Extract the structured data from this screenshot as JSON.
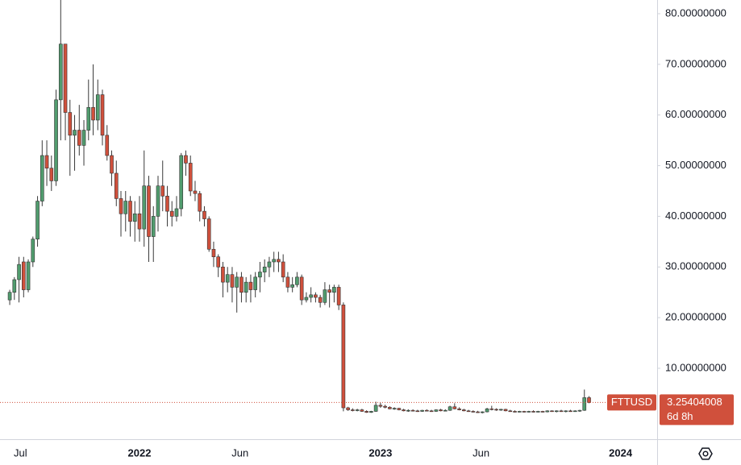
{
  "chart_data": {
    "type": "candlestick",
    "symbol": "FTTUSD",
    "last_price": 3.25404008,
    "countdown": "6d 8h",
    "up_color": "#519c6e",
    "down_color": "#d0503c",
    "grid": false,
    "ylim": [
      -4,
      82.7
    ],
    "xlim": [
      -2.1,
      139.7
    ],
    "yticks": [
      {
        "value": 10,
        "label": "10.00000000"
      },
      {
        "value": 20,
        "label": "20.00000000"
      },
      {
        "value": 30,
        "label": "30.00000000"
      },
      {
        "value": 40,
        "label": "40.00000000"
      },
      {
        "value": 50,
        "label": "50.00000000"
      },
      {
        "value": 60,
        "label": "60.00000000"
      },
      {
        "value": 70,
        "label": "70.00000000"
      },
      {
        "value": 80,
        "label": "80.00000000"
      }
    ],
    "xticks": [
      {
        "value": 2.3,
        "label": "Jul"
      },
      {
        "value": 28,
        "label": "2022"
      },
      {
        "value": 49.7,
        "label": "Jun"
      },
      {
        "value": 80,
        "label": "2023"
      },
      {
        "value": 101.7,
        "label": "Jun"
      },
      {
        "value": 131.8,
        "label": "2024"
      }
    ],
    "candles": [
      [
        23.5,
        25.5,
        22.5,
        25
      ],
      [
        25,
        28,
        23.5,
        27.5
      ],
      [
        27.5,
        32,
        23,
        30.5
      ],
      [
        31,
        32,
        24,
        25.5
      ],
      [
        25.5,
        31.5,
        25,
        31
      ],
      [
        31,
        36,
        30,
        35.5
      ],
      [
        35.5,
        44,
        34,
        43
      ],
      [
        43,
        55,
        42,
        52
      ],
      [
        52,
        55,
        46,
        49.5
      ],
      [
        49.5,
        52,
        45,
        47
      ],
      [
        47,
        65,
        46,
        63
      ],
      [
        63,
        83,
        55,
        74
      ],
      [
        74,
        74,
        55,
        60.5
      ],
      [
        60.5,
        63,
        48,
        56
      ],
      [
        56,
        60,
        49,
        57
      ],
      [
        57,
        62,
        52,
        54
      ],
      [
        54,
        59,
        50,
        57
      ],
      [
        57,
        67,
        55,
        61.5
      ],
      [
        61.5,
        70,
        56,
        59
      ],
      [
        59,
        67,
        57,
        64
      ],
      [
        64,
        65,
        54,
        56
      ],
      [
        56,
        58,
        51,
        52
      ],
      [
        52,
        53,
        46,
        48.5
      ],
      [
        48.5,
        51,
        42,
        43.5
      ],
      [
        43.5,
        45,
        36,
        40.5
      ],
      [
        40.5,
        45,
        37,
        43
      ],
      [
        43,
        44,
        36,
        39
      ],
      [
        39,
        43,
        35,
        40.5
      ],
      [
        40.5,
        44,
        35,
        37.5
      ],
      [
        37.5,
        53,
        34,
        46
      ],
      [
        46,
        48,
        31,
        36
      ],
      [
        36,
        42,
        31,
        40
      ],
      [
        40,
        48,
        37,
        46
      ],
      [
        46,
        51,
        41,
        44
      ],
      [
        44,
        46,
        38,
        41
      ],
      [
        41,
        43,
        38,
        40
      ],
      [
        40,
        44,
        39,
        41.5
      ],
      [
        41.5,
        52.5,
        40,
        52
      ],
      [
        52,
        53,
        48,
        50.5
      ],
      [
        50.5,
        52,
        44,
        45
      ],
      [
        45,
        47,
        43,
        44.5
      ],
      [
        44.5,
        45,
        39,
        41
      ],
      [
        41,
        42,
        38,
        39.5
      ],
      [
        39.5,
        40,
        33,
        33.5
      ],
      [
        33.5,
        35,
        30,
        32
      ],
      [
        32,
        32.5,
        28,
        30
      ],
      [
        30,
        31,
        24,
        27
      ],
      [
        27,
        30,
        25,
        28.5
      ],
      [
        28.5,
        30,
        23,
        26
      ],
      [
        26,
        29,
        21,
        28
      ],
      [
        28,
        29,
        23,
        25
      ],
      [
        25,
        28,
        23,
        27
      ],
      [
        27,
        28.5,
        23,
        25.5
      ],
      [
        25.5,
        29,
        24,
        28
      ],
      [
        28,
        31,
        25,
        29
      ],
      [
        29,
        31.5,
        27,
        30
      ],
      [
        30,
        32,
        28,
        31
      ],
      [
        31,
        33,
        29,
        31.5
      ],
      [
        31.5,
        33,
        29,
        31
      ],
      [
        31,
        32.5,
        27,
        28
      ],
      [
        28,
        29,
        25,
        26
      ],
      [
        26,
        28,
        25,
        26.5
      ],
      [
        26.5,
        29,
        26,
        28
      ],
      [
        28,
        28.5,
        22.5,
        23.5
      ],
      [
        23.5,
        25,
        23,
        24
      ],
      [
        24,
        26,
        23,
        24.5
      ],
      [
        24.5,
        25,
        23,
        24
      ],
      [
        24,
        24.5,
        22,
        23
      ],
      [
        23,
        27,
        22.5,
        25.5
      ],
      [
        25.5,
        26.5,
        22,
        25
      ],
      [
        25,
        26.5,
        23,
        26
      ],
      [
        26,
        26.5,
        21.5,
        22.5
      ],
      [
        22.5,
        23,
        1.5,
        2.2
      ],
      [
        2.2,
        2.4,
        1.6,
        1.8
      ],
      [
        1.8,
        2.1,
        1.5,
        1.7
      ],
      [
        1.7,
        2.0,
        1.5,
        1.8
      ],
      [
        1.8,
        2.0,
        1.4,
        1.5
      ],
      [
        1.5,
        1.7,
        1.2,
        1.3
      ],
      [
        1.3,
        1.6,
        1.2,
        1.5
      ],
      [
        1.5,
        3.4,
        1.4,
        2.7
      ],
      [
        2.7,
        3.2,
        2.2,
        2.5
      ],
      [
        2.5,
        2.8,
        2.1,
        2.3
      ],
      [
        2.3,
        2.5,
        1.9,
        2.0
      ],
      [
        2.0,
        2.3,
        1.8,
        2.1
      ],
      [
        2.1,
        2.2,
        1.7,
        1.8
      ],
      [
        1.8,
        2.0,
        1.5,
        1.6
      ],
      [
        1.6,
        1.9,
        1.4,
        1.7
      ],
      [
        1.7,
        1.9,
        1.5,
        1.6
      ],
      [
        1.6,
        1.8,
        1.4,
        1.5
      ],
      [
        1.5,
        1.8,
        1.4,
        1.7
      ],
      [
        1.7,
        1.9,
        1.5,
        1.6
      ],
      [
        1.6,
        1.8,
        1.4,
        1.5
      ],
      [
        1.5,
        1.9,
        1.4,
        1.8
      ],
      [
        1.8,
        2.0,
        1.5,
        1.6
      ],
      [
        1.6,
        1.9,
        1.5,
        1.7
      ],
      [
        1.7,
        2.6,
        1.6,
        2.4
      ],
      [
        2.4,
        3.1,
        1.9,
        2.0
      ],
      [
        2.0,
        2.3,
        1.7,
        1.8
      ],
      [
        1.8,
        2.0,
        1.5,
        1.6
      ],
      [
        1.6,
        1.8,
        1.4,
        1.5
      ],
      [
        1.5,
        1.7,
        1.3,
        1.4
      ],
      [
        1.4,
        1.6,
        1.2,
        1.3
      ],
      [
        1.3,
        1.5,
        1.1,
        1.4
      ],
      [
        1.4,
        2.2,
        1.3,
        2.0
      ],
      [
        2.0,
        2.6,
        1.7,
        1.9
      ],
      [
        1.9,
        2.1,
        1.6,
        1.8
      ],
      [
        1.8,
        2.0,
        1.6,
        1.9
      ],
      [
        1.9,
        2.0,
        1.5,
        1.6
      ],
      [
        1.6,
        1.8,
        1.4,
        1.5
      ],
      [
        1.5,
        1.7,
        1.3,
        1.4
      ],
      [
        1.4,
        1.6,
        1.3,
        1.5
      ],
      [
        1.5,
        1.6,
        1.3,
        1.4
      ],
      [
        1.4,
        1.6,
        1.3,
        1.5
      ],
      [
        1.5,
        1.7,
        1.3,
        1.4
      ],
      [
        1.4,
        1.6,
        1.3,
        1.5
      ],
      [
        1.5,
        1.6,
        1.3,
        1.4
      ],
      [
        1.4,
        1.7,
        1.3,
        1.6
      ],
      [
        1.6,
        1.7,
        1.4,
        1.5
      ],
      [
        1.5,
        1.7,
        1.3,
        1.6
      ],
      [
        1.6,
        1.8,
        1.4,
        1.5
      ],
      [
        1.5,
        1.7,
        1.3,
        1.6
      ],
      [
        1.6,
        1.8,
        1.4,
        1.5
      ],
      [
        1.5,
        1.7,
        1.4,
        1.6
      ],
      [
        1.6,
        1.8,
        1.4,
        1.7
      ],
      [
        1.7,
        5.8,
        1.6,
        4.2
      ],
      [
        4.2,
        4.5,
        3.1,
        3.25
      ]
    ]
  }
}
